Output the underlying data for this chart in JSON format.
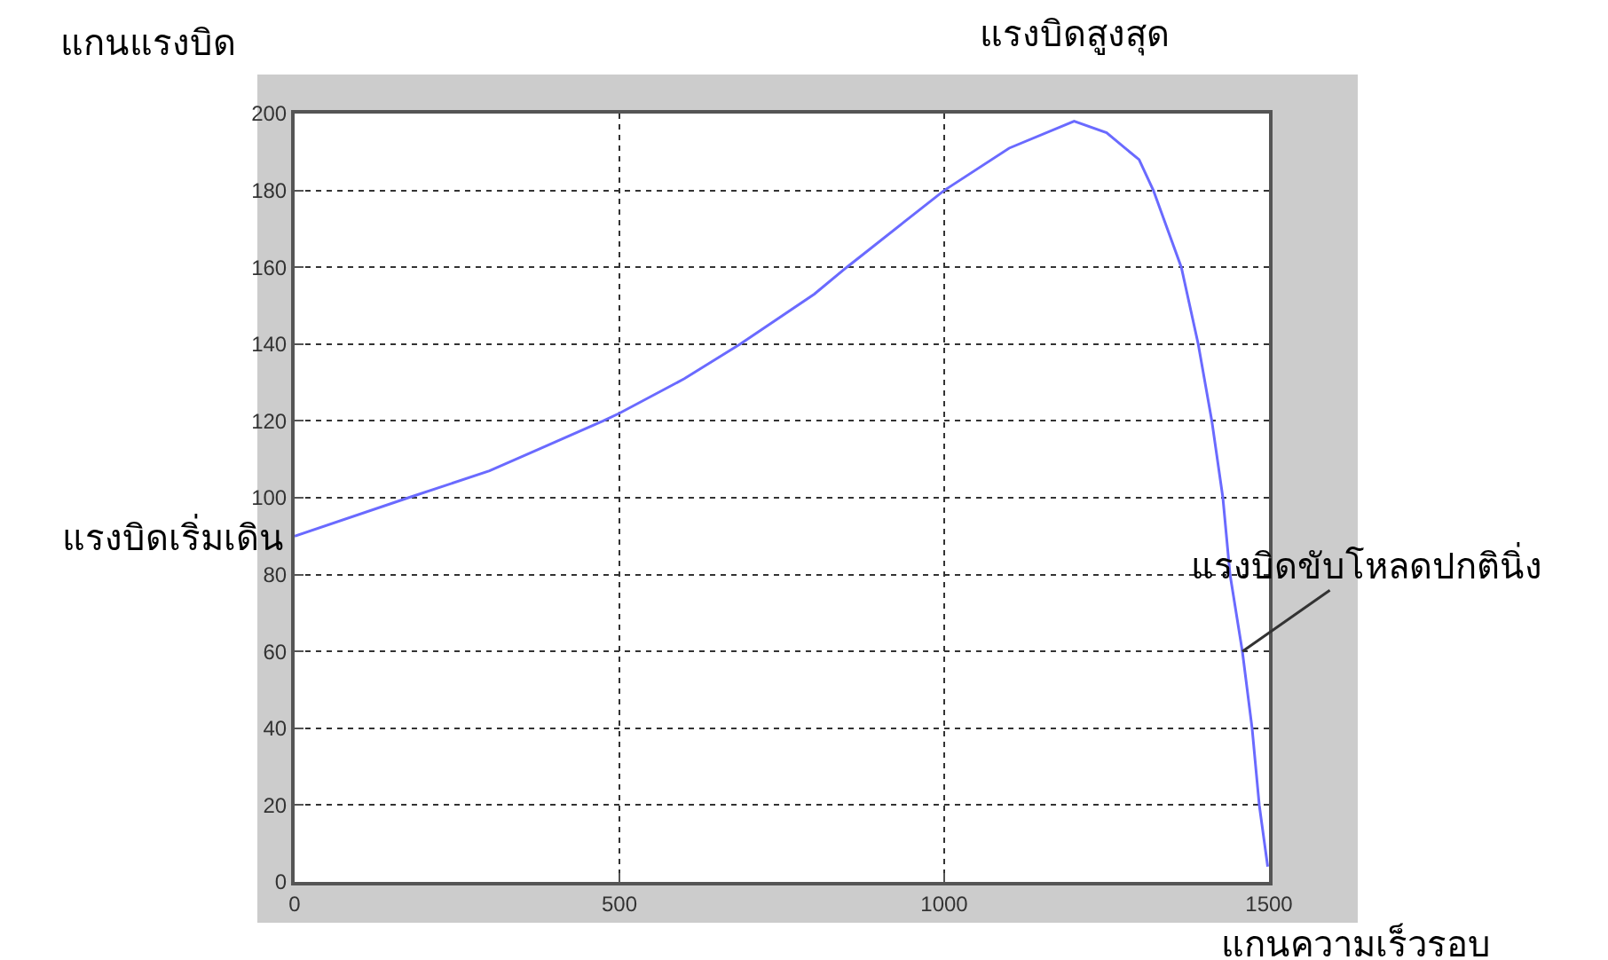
{
  "chart_data": {
    "type": "line",
    "xlabel": "แกนความเร็วรอบ",
    "ylabel": "แกนแรงบิด",
    "x": [
      0,
      175,
      300,
      475,
      500,
      600,
      686,
      800,
      850,
      1000,
      1100,
      1200,
      1250,
      1300,
      1322,
      1365,
      1391,
      1412,
      1429,
      1440,
      1459,
      1474,
      1485,
      1498
    ],
    "series": [
      {
        "color": "#6a6aff",
        "values": [
          90,
          100,
          107,
          120,
          122,
          131,
          140,
          153,
          160,
          180,
          191,
          198,
          195,
          188,
          180,
          160,
          140,
          120,
          100,
          80,
          60,
          40,
          20,
          4
        ]
      }
    ],
    "xlim": [
      0,
      1500
    ],
    "ylim": [
      0,
      200
    ],
    "xticks": [
      0,
      500,
      1000,
      1500
    ],
    "yticks": [
      0,
      20,
      40,
      60,
      80,
      100,
      120,
      140,
      160,
      180,
      200
    ],
    "grid": true,
    "annotations": [
      {
        "text": "แรงบิดสูงสุด",
        "x": 1200,
        "y": 198
      },
      {
        "text": "แรงบิดเริ่มเดิน",
        "x": 0,
        "y": 90
      },
      {
        "text": "แรงบิดขับโหลดปกตินิ่ง",
        "x": 1459,
        "y": 60
      }
    ]
  }
}
